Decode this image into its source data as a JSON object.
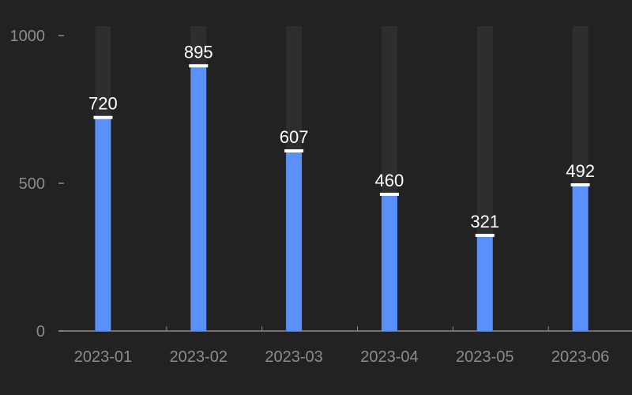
{
  "chart_data": {
    "type": "bar",
    "title": "",
    "xlabel": "",
    "ylabel": "",
    "categories": [
      "2023-01",
      "2023-02",
      "2023-03",
      "2023-04",
      "2023-05",
      "2023-06"
    ],
    "values": [
      720,
      895,
      607,
      460,
      321,
      492
    ],
    "ylim": [
      0,
      1000
    ],
    "yticks": [
      0,
      500,
      1000
    ],
    "grid": false,
    "legend": "none",
    "data_labels": true,
    "colors": {
      "background": "#222222",
      "bar": "#5b8ff9",
      "track": "#2e2e2e",
      "cap": "#ffffff",
      "axis": "#8c8c8c",
      "tick_label": "#8c8c8c",
      "data_label": "#ffffff"
    }
  }
}
